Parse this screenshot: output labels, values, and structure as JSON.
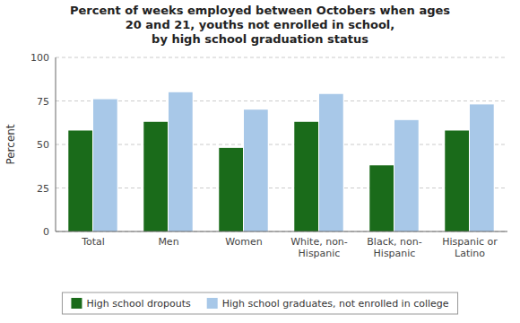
{
  "chart_data": {
    "type": "bar",
    "title": "Percent of weeks employed between Octobers when ages\n20 and 21, youths not enrolled in school,\nby high school graduation status",
    "categories": [
      "Total",
      "Men",
      "Women",
      "White, non-\nHispanic",
      "Black, non-\nHispanic",
      "Hispanic or\nLatino"
    ],
    "series": [
      {
        "name": "High school dropouts",
        "color": "#1a6b1a",
        "values": [
          58,
          63,
          48,
          63,
          38,
          58
        ]
      },
      {
        "name": "High school graduates, not enrolled in college",
        "color": "#a8c8e8",
        "values": [
          76,
          80,
          70,
          79,
          64,
          73
        ]
      }
    ],
    "ylabel": "Percent",
    "ylim": [
      0,
      100
    ],
    "yticks": [
      0,
      25,
      50,
      75,
      100
    ],
    "grid": true,
    "legend": "bottom"
  }
}
